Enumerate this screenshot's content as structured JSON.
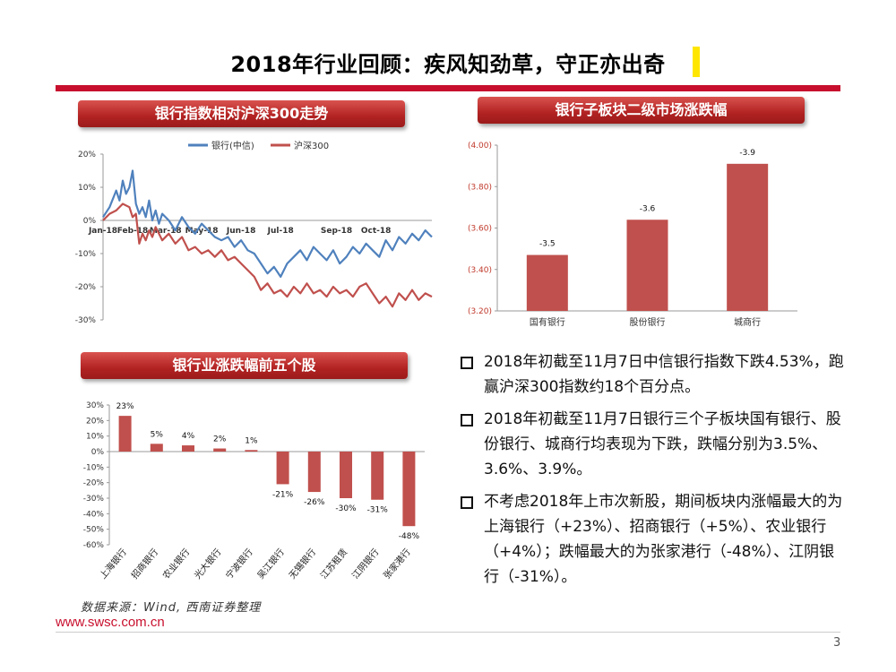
{
  "page": {
    "title": "2018年行业回顾：疾风知劲草，守正亦出奇",
    "source": "数据来源：Wind, 西南证券整理",
    "url": "www.swsc.com.cn",
    "page_number": "3",
    "accent_color": "#c8102e"
  },
  "panels": {
    "line_header": "银行指数相对沪深300走势",
    "sub_header": "银行子板块二级市场涨跌幅",
    "top5_header": "银行业涨跌幅前五个股"
  },
  "bullets": [
    "2018年初截至11月7日中信银行指数下跌4.53%，跑赢沪深300指数约18个百分点。",
    "2018年初截至11月7日银行三个子板块国有银行、股份银行、城商行均表现为下跌，跌幅分别为3.5%、3.6%、3.9%。",
    "不考虑2018年上市次新股，期间板块内涨幅最大的为上海银行（+23%）、招商银行（+5%）、农业银行（+4%）；跌幅最大的为张家港行（-48%）、江阴银行（-31%）。"
  ],
  "chart_data": [
    {
      "type": "line",
      "x_tick_labels": [
        "Jan-18",
        "Feb-18",
        "Mar-18",
        "May-18",
        "Jun-18",
        "Jul-18",
        "Sep-18",
        "Oct-18"
      ],
      "x_tick_positions": [
        0,
        0.09,
        0.19,
        0.3,
        0.42,
        0.54,
        0.71,
        0.83
      ],
      "y_tick_labels": [
        "20%",
        "10%",
        "0%",
        "-10%",
        "-20%",
        "-30%"
      ],
      "ylim": [
        -30,
        20
      ],
      "legend_placement": "top",
      "series": [
        {
          "name": "银行(中信)",
          "color": "#4f81bd",
          "x": [
            0,
            0.02,
            0.04,
            0.05,
            0.06,
            0.07,
            0.08,
            0.09,
            0.1,
            0.11,
            0.12,
            0.13,
            0.14,
            0.15,
            0.16,
            0.17,
            0.18,
            0.2,
            0.22,
            0.24,
            0.26,
            0.28,
            0.3,
            0.32,
            0.34,
            0.36,
            0.38,
            0.4,
            0.42,
            0.44,
            0.46,
            0.48,
            0.5,
            0.52,
            0.54,
            0.56,
            0.58,
            0.6,
            0.62,
            0.64,
            0.66,
            0.68,
            0.7,
            0.72,
            0.74,
            0.76,
            0.78,
            0.8,
            0.82,
            0.84,
            0.86,
            0.88,
            0.9,
            0.92,
            0.94,
            0.96,
            0.98,
            1.0
          ],
          "values": [
            1,
            4,
            9,
            6,
            12,
            8,
            10,
            15,
            5,
            2,
            4,
            1,
            6,
            0,
            3,
            -1,
            2,
            0,
            -3,
            1,
            -2,
            -4,
            -1,
            -3,
            -5,
            -6,
            -5,
            -8,
            -6,
            -9,
            -10,
            -13,
            -16,
            -14,
            -17,
            -13,
            -11,
            -9,
            -12,
            -8,
            -10,
            -12,
            -9,
            -13,
            -11,
            -8,
            -10,
            -7,
            -9,
            -11,
            -6,
            -9,
            -5,
            -7,
            -4,
            -6,
            -3,
            -5
          ]
        },
        {
          "name": "沪深300",
          "color": "#c0504d",
          "x": [
            0,
            0.02,
            0.04,
            0.06,
            0.08,
            0.09,
            0.1,
            0.11,
            0.12,
            0.13,
            0.14,
            0.15,
            0.16,
            0.18,
            0.2,
            0.22,
            0.24,
            0.26,
            0.28,
            0.3,
            0.32,
            0.34,
            0.36,
            0.38,
            0.4,
            0.42,
            0.44,
            0.46,
            0.48,
            0.5,
            0.52,
            0.54,
            0.56,
            0.58,
            0.6,
            0.62,
            0.64,
            0.66,
            0.68,
            0.7,
            0.72,
            0.74,
            0.76,
            0.78,
            0.8,
            0.82,
            0.84,
            0.86,
            0.88,
            0.9,
            0.92,
            0.94,
            0.96,
            0.98,
            1.0
          ],
          "values": [
            0,
            2,
            3,
            5,
            4,
            1,
            2,
            -7,
            -4,
            -6,
            -3,
            -5,
            -2,
            -6,
            -4,
            -7,
            -5,
            -9,
            -8,
            -10,
            -9,
            -11,
            -9,
            -12,
            -11,
            -13,
            -15,
            -17,
            -21,
            -19,
            -22,
            -21,
            -23,
            -20,
            -22,
            -19,
            -22,
            -21,
            -23,
            -20,
            -22,
            -21,
            -23,
            -20,
            -19,
            -22,
            -25,
            -23,
            -26,
            -22,
            -24,
            -21,
            -24,
            -22,
            -23
          ]
        }
      ]
    },
    {
      "type": "bar",
      "categories": [
        "国有银行",
        "股份银行",
        "城商行"
      ],
      "values": [
        -3.5,
        -3.6,
        -3.9
      ],
      "data_labels": [
        "-3.5",
        "-3.6",
        "-3.9"
      ],
      "axis_values": [
        -3.47,
        -3.64,
        -3.91
      ],
      "y_tick_labels": [
        "(4.00)",
        "(3.80)",
        "(3.60)",
        "(3.40)",
        "(3.20)"
      ],
      "axis_range": [
        -3.2,
        -4.0
      ],
      "axis_reversed": true,
      "bar_color": "#c0504d",
      "label_color": "#c0392b"
    },
    {
      "type": "bar",
      "categories": [
        "上海银行",
        "招商银行",
        "农业银行",
        "光大银行",
        "宁波银行",
        "吴江银行",
        "无锡银行",
        "江苏租赁",
        "江阴银行",
        "张家港行"
      ],
      "values": [
        23,
        5,
        4,
        2,
        1,
        -21,
        -26,
        -30,
        -31,
        -48
      ],
      "data_labels": [
        "23%",
        "5%",
        "4%",
        "2%",
        "1%",
        "-21%",
        "-26%",
        "-30%",
        "-31%",
        "-48%"
      ],
      "y_tick_labels": [
        "30%",
        "20%",
        "10%",
        "0%",
        "-10%",
        "-20%",
        "-30%",
        "-40%",
        "-50%",
        "-60%"
      ],
      "ylim": [
        -60,
        30
      ],
      "bar_color": "#c0504d"
    }
  ]
}
